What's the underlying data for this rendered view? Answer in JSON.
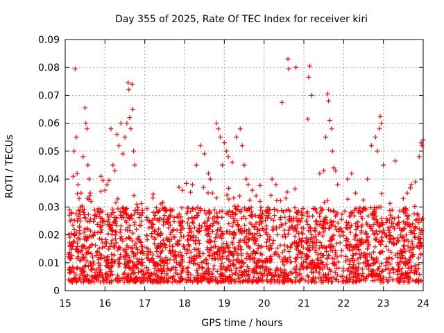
{
  "chart_data": {
    "type": "scatter",
    "title": "Day 355 of 2025, Rate Of TEC Index for receiver kiri",
    "xlabel": "GPS time / hours",
    "ylabel": "ROTI / TECUs",
    "xlim": [
      15,
      24
    ],
    "ylim": [
      0,
      0.09
    ],
    "xticks": [
      "15",
      "16",
      "17",
      "18",
      "19",
      "20",
      "21",
      "22",
      "23",
      "24"
    ],
    "yticks": [
      "0",
      "0.01",
      "0.02",
      "0.03",
      "0.04",
      "0.05",
      "0.06",
      "0.07",
      "0.08",
      "0.09"
    ],
    "grid": true,
    "marker": "+",
    "series_color": "#ff0000",
    "series": [
      {
        "name": "ROTI",
        "x": [
          15.2,
          15.22,
          15.25,
          15.28,
          15.3,
          15.32,
          15.35,
          15.4,
          15.45,
          15.5,
          15.52,
          15.55,
          15.57,
          15.6,
          15.62,
          15.65,
          15.9,
          15.95,
          16.0,
          16.05,
          16.1,
          16.15,
          16.2,
          16.25,
          16.3,
          16.35,
          16.4,
          16.45,
          16.5,
          16.55,
          16.58,
          16.6,
          16.62,
          16.65,
          16.68,
          16.7,
          16.72,
          16.75,
          16.8,
          17.95,
          18.2,
          18.3,
          18.4,
          18.5,
          18.6,
          18.65,
          18.7,
          18.8,
          18.85,
          18.9,
          18.95,
          19.0,
          19.05,
          19.1,
          19.2,
          19.3,
          19.4,
          19.45,
          19.5,
          19.55,
          19.6,
          19.7,
          19.8,
          19.9,
          20.2,
          20.3,
          20.45,
          20.6,
          20.62,
          20.8,
          21.1,
          21.12,
          21.15,
          21.2,
          21.4,
          21.5,
          21.55,
          21.6,
          21.62,
          21.65,
          21.7,
          21.72,
          21.75,
          21.8,
          21.85,
          22.1,
          22.2,
          22.3,
          22.6,
          22.7,
          22.8,
          22.85,
          22.9,
          22.92,
          22.95,
          23.0,
          23.3,
          23.5,
          23.6,
          23.7,
          23.8,
          23.9,
          23.95,
          23.97,
          24.0
        ],
        "y": [
          0.041,
          0.05,
          0.0795,
          0.055,
          0.042,
          0.038,
          0.033,
          0.035,
          0.048,
          0.0655,
          0.06,
          0.058,
          0.045,
          0.04,
          0.034,
          0.032,
          0.041,
          0.0395,
          0.036,
          0.038,
          0.0395,
          0.058,
          0.045,
          0.043,
          0.056,
          0.052,
          0.06,
          0.049,
          0.055,
          0.06,
          0.0745,
          0.072,
          0.062,
          0.058,
          0.074,
          0.065,
          0.05,
          0.045,
          0.031,
          0.036,
          0.038,
          0.045,
          0.052,
          0.049,
          0.042,
          0.04,
          0.035,
          0.06,
          0.058,
          0.055,
          0.045,
          0.053,
          0.05,
          0.048,
          0.046,
          0.055,
          0.058,
          0.052,
          0.045,
          0.04,
          0.038,
          0.036,
          0.034,
          0.032,
          0.04,
          0.038,
          0.0675,
          0.083,
          0.0795,
          0.08,
          0.0615,
          0.0765,
          0.0805,
          0.07,
          0.042,
          0.043,
          0.055,
          0.0705,
          0.068,
          0.061,
          0.058,
          0.05,
          0.044,
          0.043,
          0.038,
          0.04,
          0.042,
          0.035,
          0.04,
          0.052,
          0.055,
          0.05,
          0.058,
          0.0625,
          0.06,
          0.045,
          0.0465,
          0.033,
          0.035,
          0.038,
          0.039,
          0.048,
          0.053,
          0.052,
          0.054
        ]
      }
    ],
    "background_noise_band": {
      "y_min": 0.003,
      "y_max": 0.03,
      "description": "dense points across all hours"
    }
  }
}
